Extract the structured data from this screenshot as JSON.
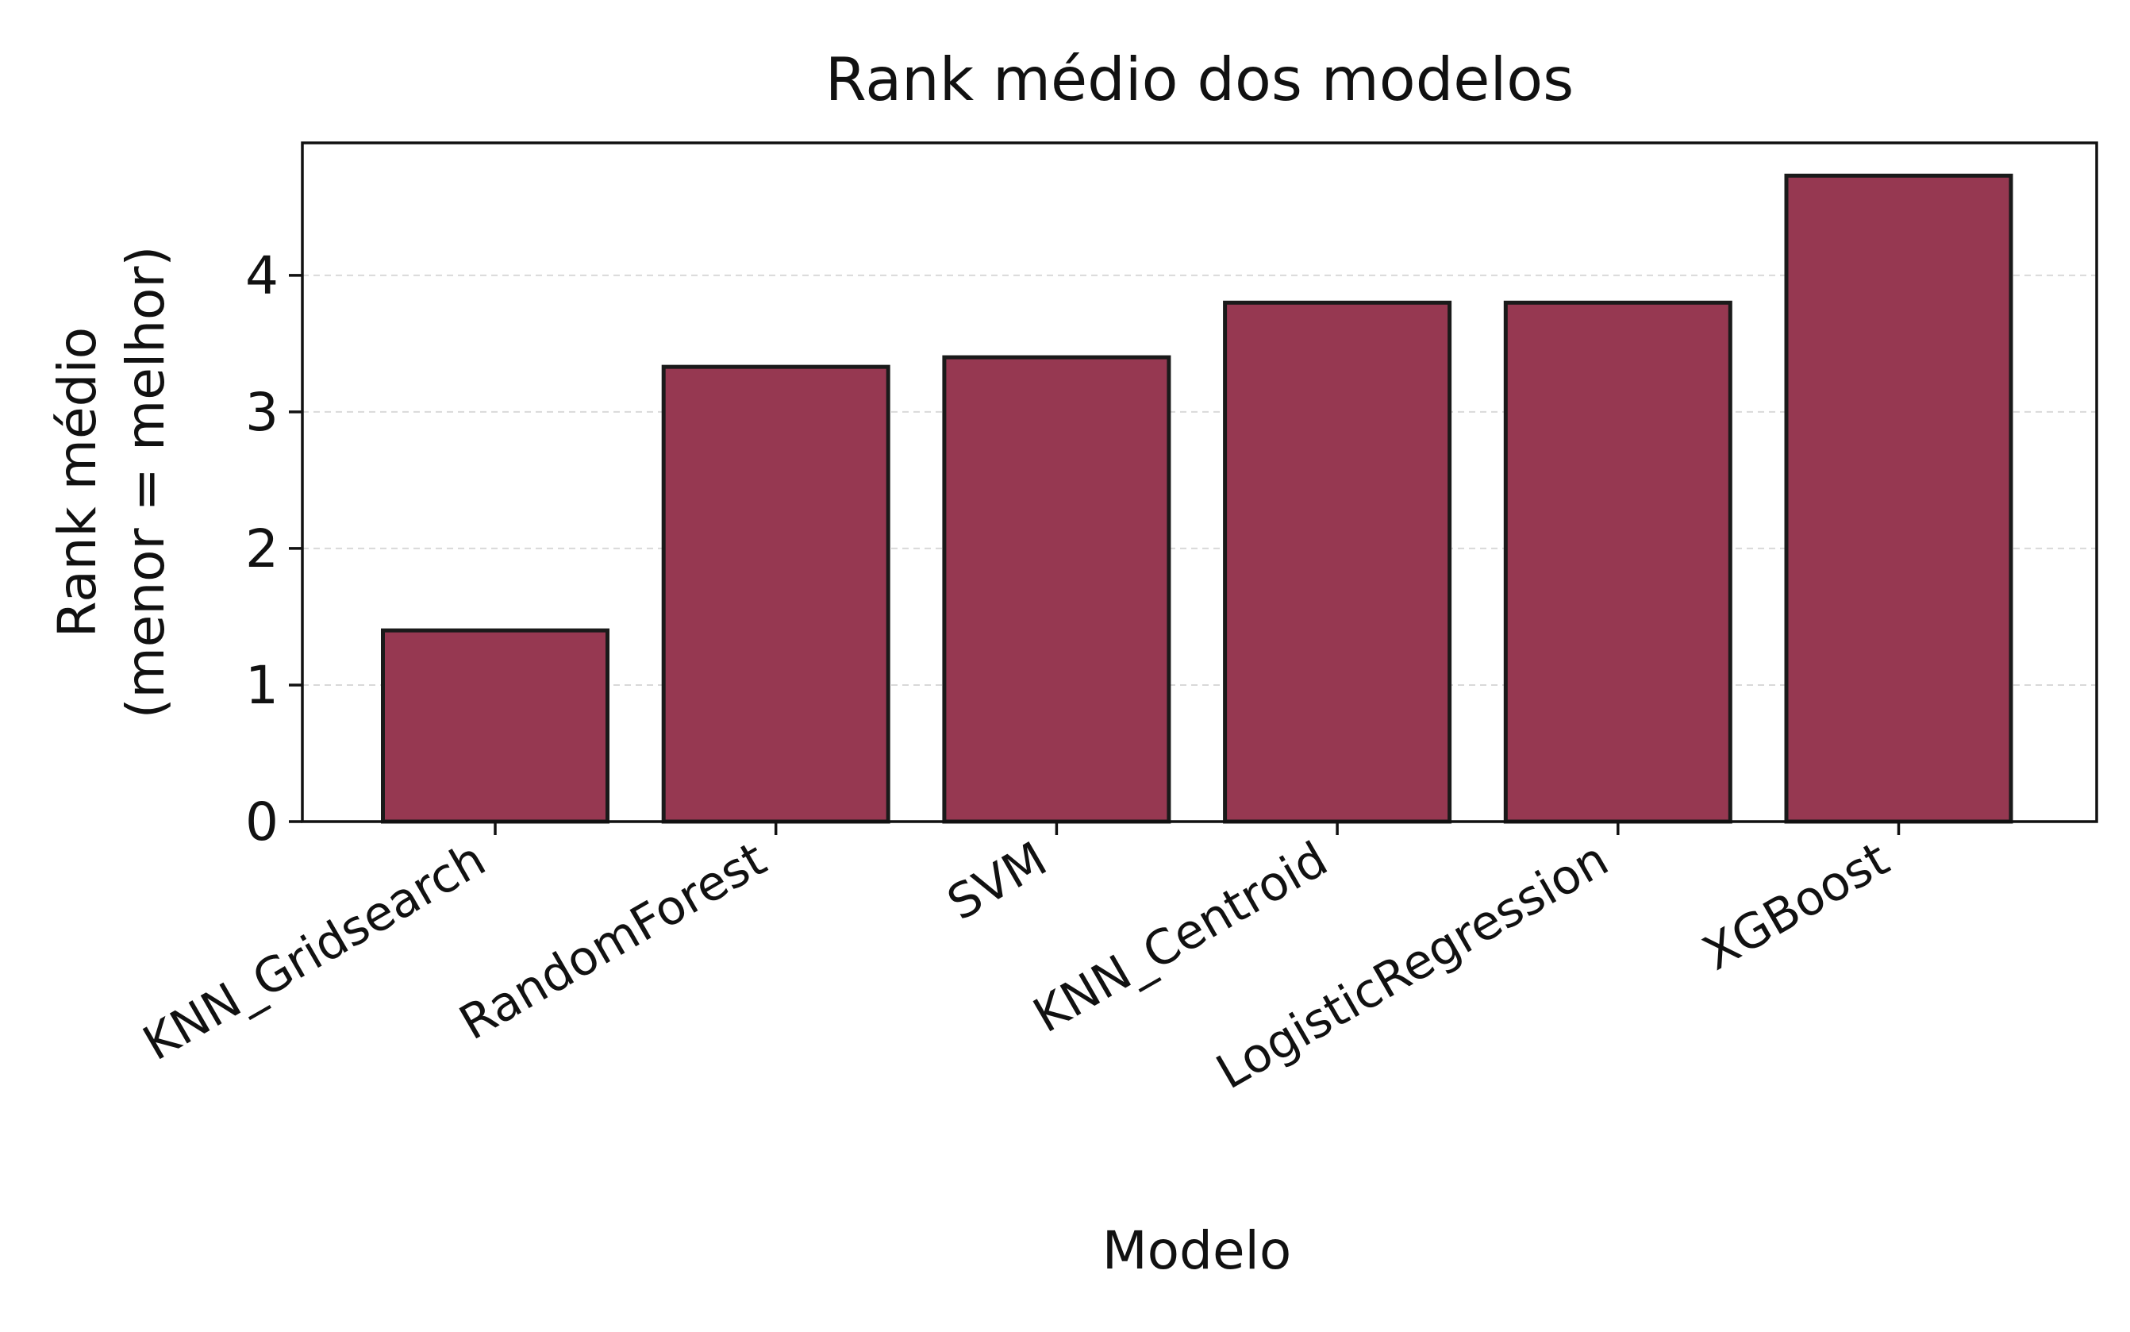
{
  "chart_data": {
    "type": "bar",
    "title": "Rank médio dos modelos",
    "xlabel": "Modelo",
    "ylabel_lines": [
      "Rank médio",
      "(menor = melhor)"
    ],
    "categories": [
      "KNN_Gridsearch",
      "RandomForest",
      "SVM",
      "KNN_Centroid",
      "LogisticRegression",
      "XGBoost"
    ],
    "values": [
      1.4,
      3.33,
      3.4,
      3.8,
      3.8,
      4.73
    ],
    "yticks": [
      "0",
      "1",
      "2",
      "3",
      "4"
    ],
    "ylim": [
      0,
      4.97
    ],
    "grid": "horizontal dashed",
    "bar_color": "#963851",
    "edge_color": "#1a1a1a"
  }
}
